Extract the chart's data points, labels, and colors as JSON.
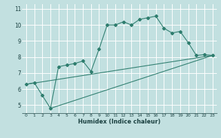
{
  "xlabel": "Humidex (Indice chaleur)",
  "bg_color": "#c2e0e0",
  "grid_color": "#ffffff",
  "line_color": "#2e7d6e",
  "xlim": [
    -0.5,
    23.5
  ],
  "ylim": [
    4.5,
    11.3
  ],
  "xticks": [
    0,
    1,
    2,
    3,
    4,
    5,
    6,
    7,
    8,
    9,
    10,
    11,
    12,
    13,
    14,
    15,
    16,
    17,
    18,
    19,
    20,
    21,
    22,
    23
  ],
  "yticks": [
    5,
    6,
    7,
    8,
    9,
    10,
    11
  ],
  "main_line": {
    "x": [
      0,
      1,
      2,
      3,
      4,
      5,
      6,
      7,
      8,
      9,
      10,
      11,
      12,
      13,
      14,
      15,
      16,
      17,
      18,
      19,
      20,
      21,
      22,
      23
    ],
    "y": [
      6.3,
      6.4,
      5.6,
      4.8,
      7.4,
      7.5,
      7.6,
      7.75,
      7.1,
      8.5,
      10.0,
      10.0,
      10.2,
      10.0,
      10.35,
      10.45,
      10.55,
      9.8,
      9.5,
      9.6,
      8.9,
      8.1,
      8.15,
      8.1
    ]
  },
  "diag_line1": {
    "x": [
      0,
      23
    ],
    "y": [
      6.3,
      8.1
    ]
  },
  "diag_line2": {
    "x": [
      3,
      23
    ],
    "y": [
      4.8,
      8.1
    ]
  }
}
